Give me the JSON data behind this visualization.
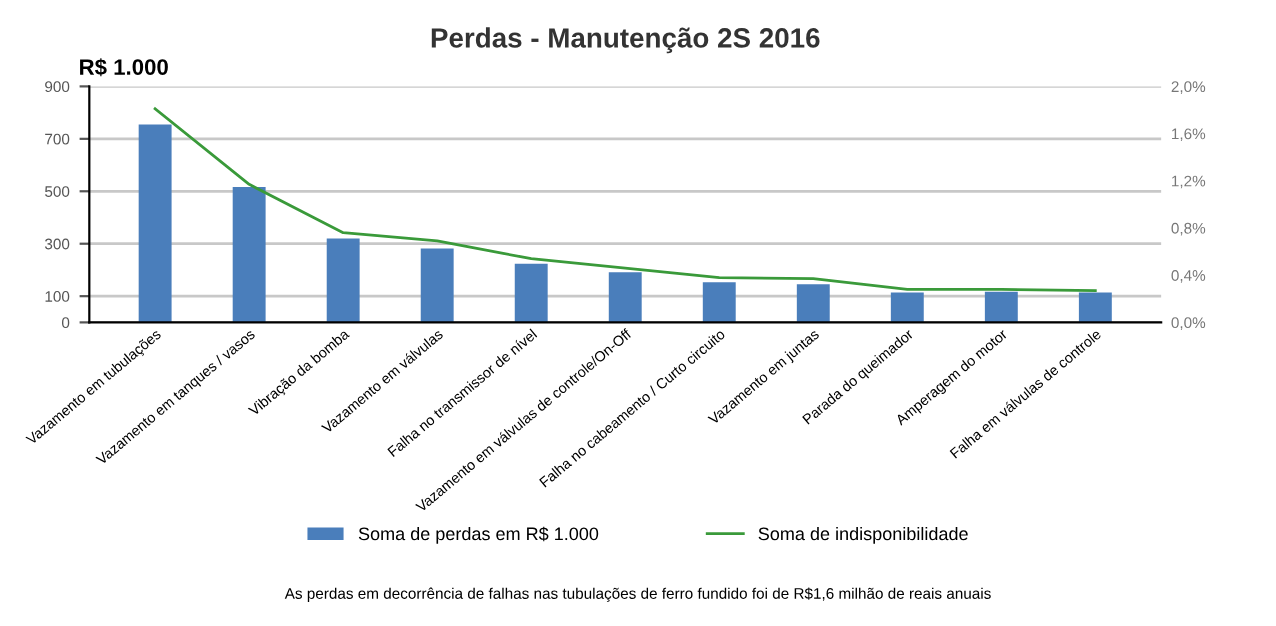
{
  "chart_data": {
    "type": "bar",
    "title": "Perdas - Manutenção 2S 2016",
    "ylabel": "R$ 1.000",
    "categories": [
      "Vazamento em tubulações",
      "Vazamento em tanques / vasos",
      "Vibração da bomba",
      "Vazamento em válvulas",
      "Falha no transmissor de nível",
      "Vazamento em válvulas de controle/On-Off",
      "Falha no cabeamento / Curto circuito",
      "Vazamento em juntas",
      "Parada do queimador",
      "Amperagem do motor",
      "Falha em válvulas de controle"
    ],
    "series": [
      {
        "name": "Soma de perdas em R$ 1.000",
        "color": "#4a7ebb",
        "values": [
          755,
          516,
          320,
          282,
          224,
          191,
          153,
          145,
          114,
          117,
          114
        ]
      },
      {
        "name": "Soma de indisponibilidade",
        "color": "#3a9a3a",
        "type": "line",
        "axis": "y2",
        "values": [
          1.81,
          1.17,
          0.76,
          0.69,
          0.54,
          0.46,
          0.38,
          0.37,
          0.28,
          0.28,
          0.27
        ]
      }
    ],
    "ylim": [
      0,
      900
    ],
    "yticks": [
      0,
      100,
      300,
      500,
      700,
      900
    ],
    "y2lim": [
      0,
      2.0
    ],
    "y2ticks": [
      {
        "value": 0,
        "label": "0,0%"
      },
      {
        "value": 0.4,
        "label": "0,4%"
      },
      {
        "value": 0.8,
        "label": "0,8%"
      },
      {
        "value": 1.2,
        "label": "1,2%"
      },
      {
        "value": 1.6,
        "label": "1,6%"
      },
      {
        "value": 2.0,
        "label": "2,0%"
      }
    ],
    "grid": "y",
    "legend": "bottom",
    "marker": "none",
    "line_style": "solid",
    "annotations": [
      "As perdas em decorrência de falhas nas tubulações de ferro fundido foi de R$1,6 milhão de reais anuais"
    ]
  }
}
